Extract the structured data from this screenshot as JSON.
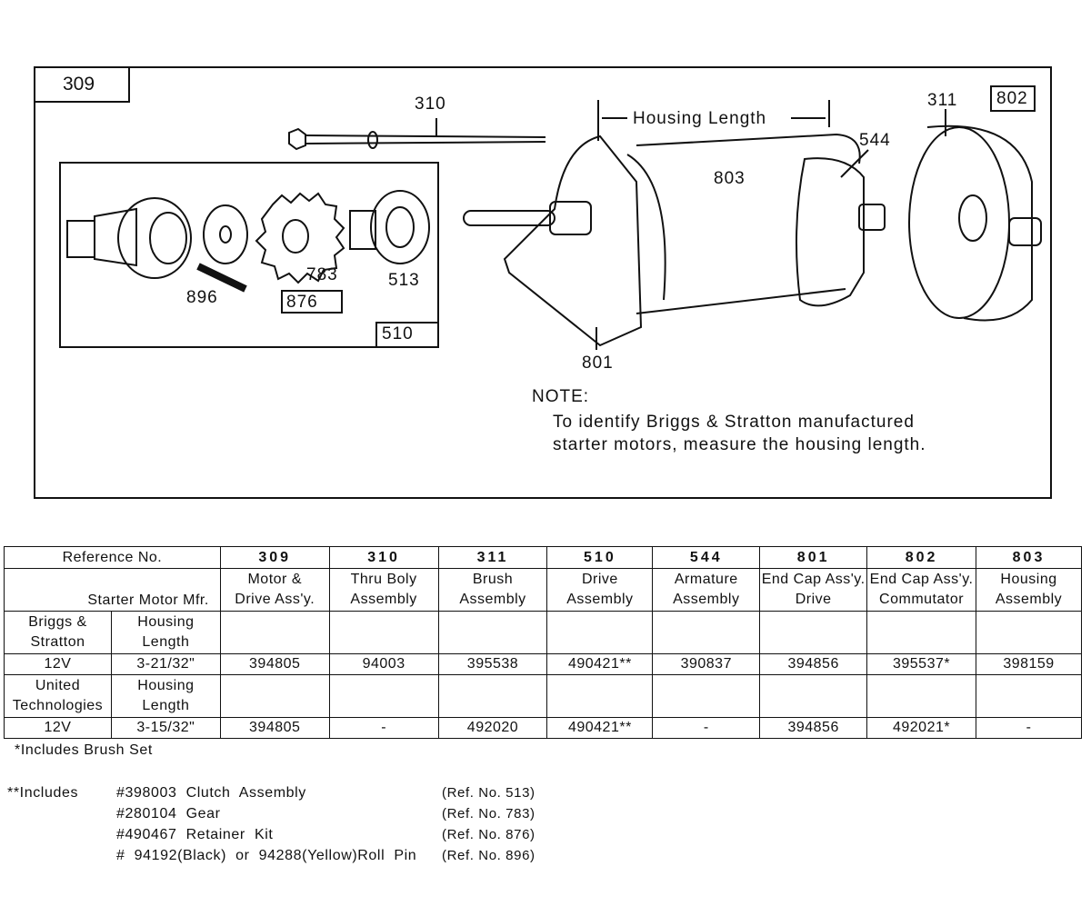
{
  "diagram": {
    "main_ref": "309",
    "labels": {
      "r310": "310",
      "r311": "311",
      "r802": "802",
      "r544": "544",
      "r803": "803",
      "r801": "801",
      "r896": "896",
      "r876": "876",
      "r783": "783",
      "r513": "513",
      "r510": "510"
    },
    "housing_length": "Housing Length",
    "note_title": "NOTE:",
    "note_line1": "To identify Briggs & Stratton manufactured",
    "note_line2": "starter motors, measure the housing length."
  },
  "table": {
    "ref_header": "Reference No.",
    "mfr_header": "Starter Motor Mfr.",
    "columns": [
      {
        "ref": "309",
        "l1": "Motor &",
        "l2": "Drive Ass'y."
      },
      {
        "ref": "310",
        "l1": "Thru Boly",
        "l2": "Assembly"
      },
      {
        "ref": "311",
        "l1": "Brush",
        "l2": "Assembly"
      },
      {
        "ref": "510",
        "l1": "Drive",
        "l2": "Assembly"
      },
      {
        "ref": "544",
        "l1": "Armature",
        "l2": "Assembly"
      },
      {
        "ref": "801",
        "l1": "End Cap Ass'y.",
        "l2": "Drive"
      },
      {
        "ref": "802",
        "l1": "End Cap Ass'y.",
        "l2": "Commutator"
      },
      {
        "ref": "803",
        "l1": "Housing",
        "l2": "Assembly"
      }
    ],
    "rows": [
      {
        "mfr1": "Briggs &",
        "mfr2": "Stratton",
        "hl1": "Housing",
        "hl2": "Length",
        "volt": "12V",
        "length": "3-21/32\"",
        "values": [
          "394805",
          "94003",
          "395538",
          "490421**",
          "390837",
          "394856",
          "395537*",
          "398159"
        ]
      },
      {
        "mfr1": "United",
        "mfr2": "Technologies",
        "hl1": "Housing",
        "hl2": "Length",
        "volt": "12V",
        "length": "3-15/32\"",
        "values": [
          "394805",
          "-",
          "492020",
          "490421**",
          "-",
          "394856",
          "492021*",
          "-"
        ]
      }
    ]
  },
  "footnotes": {
    "single": "*Includes Brush Set",
    "double_prefix": "**Includes",
    "items": [
      {
        "part": "#398003  Clutch  Assembly",
        "ref": "(Ref. No. 513)"
      },
      {
        "part": "#280104  Gear",
        "ref": "(Ref. No. 783)"
      },
      {
        "part": "#490467  Retainer  Kit",
        "ref": "(Ref. No. 876)"
      },
      {
        "part": "#  94192(Black)  or  94288(Yellow)Roll  Pin",
        "ref": "(Ref. No. 896)"
      }
    ]
  }
}
